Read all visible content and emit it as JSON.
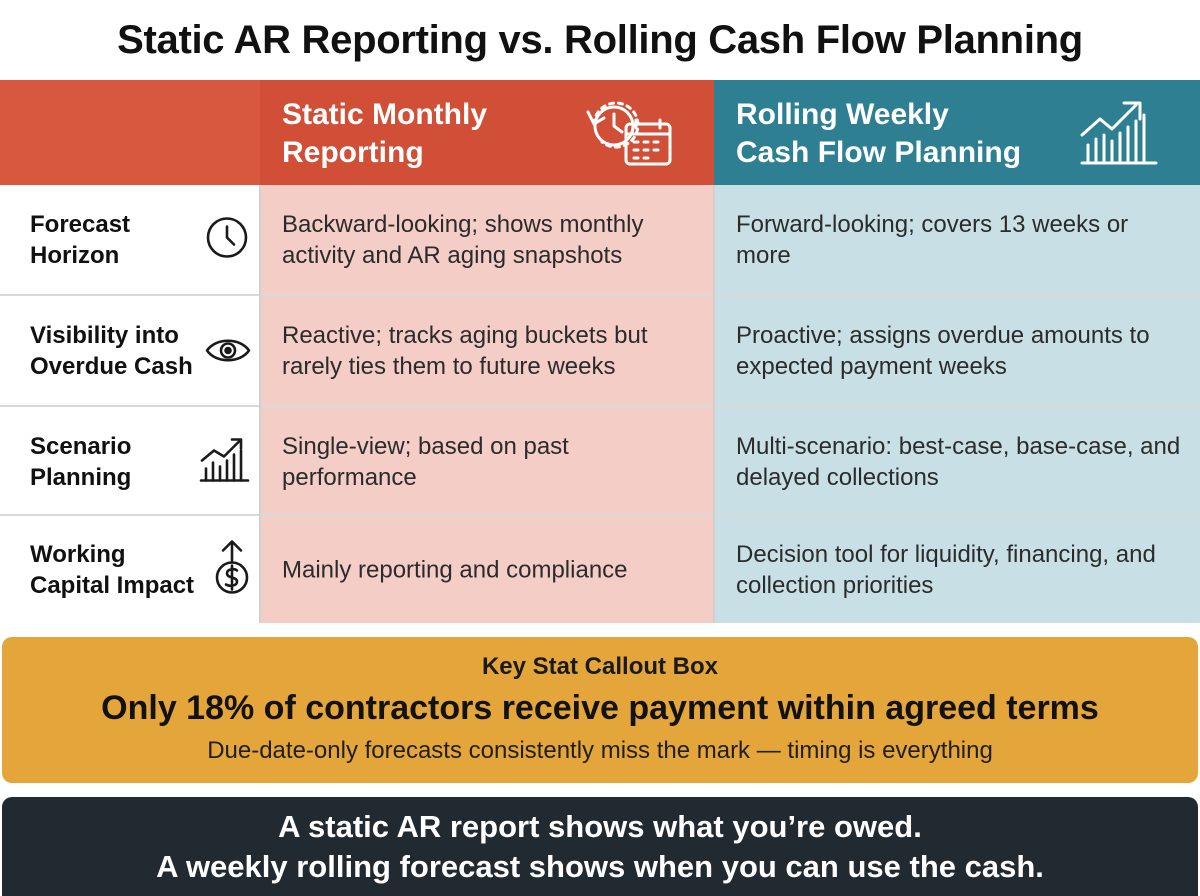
{
  "title": "Static AR Reporting vs. Rolling Cash Flow Planning",
  "columns": {
    "static": {
      "label": "Static Monthly\nReporting",
      "icon": "clock-calendar-icon"
    },
    "rolling": {
      "label": "Rolling Weekly\nCash Flow Planning",
      "icon": "growth-chart-icon"
    }
  },
  "rows": [
    {
      "label": "Forecast\nHorizon",
      "icon": "clock-icon",
      "static": "Backward-looking; shows monthly activity and AR aging snapshots",
      "rolling": "Forward-looking; covers 13 weeks or more"
    },
    {
      "label": "Visibility into\nOverdue Cash",
      "icon": "eye-icon",
      "static": "Reactive; tracks aging buckets but rarely ties them to future weeks",
      "rolling": "Proactive; assigns overdue amounts to expected payment weeks"
    },
    {
      "label": "Scenario\nPlanning",
      "icon": "bar-chart-icon",
      "static": "Single-view; based on past performance",
      "rolling": "Multi-scenario: best-case, base-case, and delayed collections"
    },
    {
      "label": "Working\nCapital Impact",
      "icon": "dollar-coin-icon",
      "static": "Mainly reporting and compliance",
      "rolling": "Decision tool for liquidity, financing, and collection priorities"
    }
  ],
  "callout": {
    "heading": "Key Stat Callout Box",
    "stat": "Only 18% of contractors receive payment within agreed terms",
    "subtext": "Due-date-only forecasts consistently miss the mark — timing is everything"
  },
  "footer": {
    "line1": "A static AR report shows what you’re owed.",
    "line2": "A weekly rolling forecast shows when you can use the cash."
  },
  "colors": {
    "header_static": "#d04f36",
    "header_rolling": "#2f7f93",
    "cell_static": "#f3cdc6",
    "cell_rolling": "#c8e0e5",
    "callout": "#e4a53a",
    "footer": "#222a31"
  }
}
